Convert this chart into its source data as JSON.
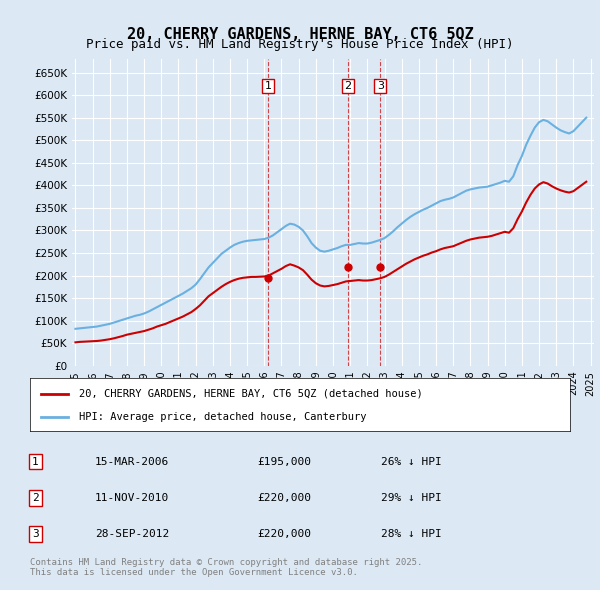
{
  "title": "20, CHERRY GARDENS, HERNE BAY, CT6 5QZ",
  "subtitle": "Price paid vs. HM Land Registry's House Price Index (HPI)",
  "background_color": "#dce9f5",
  "plot_bg_color": "#dce9f5",
  "hpi_color": "#6ab0e0",
  "price_color": "#cc0000",
  "ylim": [
    0,
    680000
  ],
  "yticks": [
    0,
    50000,
    100000,
    150000,
    200000,
    250000,
    300000,
    350000,
    400000,
    450000,
    500000,
    550000,
    600000,
    650000
  ],
  "legend_line1": "20, CHERRY GARDENS, HERNE BAY, CT6 5QZ (detached house)",
  "legend_line2": "HPI: Average price, detached house, Canterbury",
  "sale_dates": [
    "2006-03-15",
    "2010-11-11",
    "2012-09-28"
  ],
  "sale_labels": [
    "1",
    "2",
    "3"
  ],
  "sale_prices": [
    195000,
    220000,
    220000
  ],
  "sale_info": [
    [
      "1",
      "15-MAR-2006",
      "£195,000",
      "26% ↓ HPI"
    ],
    [
      "2",
      "11-NOV-2010",
      "£220,000",
      "29% ↓ HPI"
    ],
    [
      "3",
      "28-SEP-2012",
      "£220,000",
      "28% ↓ HPI"
    ]
  ],
  "footer": "Contains HM Land Registry data © Crown copyright and database right 2025.\nThis data is licensed under the Open Government Licence v3.0.",
  "hpi_data": {
    "dates": [
      1995.0,
      1995.25,
      1995.5,
      1995.75,
      1996.0,
      1996.25,
      1996.5,
      1996.75,
      1997.0,
      1997.25,
      1997.5,
      1997.75,
      1998.0,
      1998.25,
      1998.5,
      1998.75,
      1999.0,
      1999.25,
      1999.5,
      1999.75,
      2000.0,
      2000.25,
      2000.5,
      2000.75,
      2001.0,
      2001.25,
      2001.5,
      2001.75,
      2002.0,
      2002.25,
      2002.5,
      2002.75,
      2003.0,
      2003.25,
      2003.5,
      2003.75,
      2004.0,
      2004.25,
      2004.5,
      2004.75,
      2005.0,
      2005.25,
      2005.5,
      2005.75,
      2006.0,
      2006.25,
      2006.5,
      2006.75,
      2007.0,
      2007.25,
      2007.5,
      2007.75,
      2008.0,
      2008.25,
      2008.5,
      2008.75,
      2009.0,
      2009.25,
      2009.5,
      2009.75,
      2010.0,
      2010.25,
      2010.5,
      2010.75,
      2011.0,
      2011.25,
      2011.5,
      2011.75,
      2012.0,
      2012.25,
      2012.5,
      2012.75,
      2013.0,
      2013.25,
      2013.5,
      2013.75,
      2014.0,
      2014.25,
      2014.5,
      2014.75,
      2015.0,
      2015.25,
      2015.5,
      2015.75,
      2016.0,
      2016.25,
      2016.5,
      2016.75,
      2017.0,
      2017.25,
      2017.5,
      2017.75,
      2018.0,
      2018.25,
      2018.5,
      2018.75,
      2019.0,
      2019.25,
      2019.5,
      2019.75,
      2020.0,
      2020.25,
      2020.5,
      2020.75,
      2021.0,
      2021.25,
      2021.5,
      2021.75,
      2022.0,
      2022.25,
      2022.5,
      2022.75,
      2023.0,
      2023.25,
      2023.5,
      2023.75,
      2024.0,
      2024.25,
      2024.5,
      2024.75
    ],
    "values": [
      82000,
      83000,
      84000,
      85000,
      86000,
      87000,
      89000,
      91000,
      93000,
      96000,
      99000,
      102000,
      105000,
      108000,
      111000,
      113000,
      116000,
      120000,
      125000,
      130000,
      135000,
      140000,
      145000,
      150000,
      155000,
      160000,
      166000,
      172000,
      180000,
      192000,
      205000,
      218000,
      228000,
      238000,
      248000,
      255000,
      262000,
      268000,
      272000,
      275000,
      277000,
      278000,
      279000,
      280000,
      281000,
      284000,
      289000,
      296000,
      303000,
      310000,
      315000,
      313000,
      308000,
      300000,
      287000,
      272000,
      262000,
      255000,
      253000,
      255000,
      258000,
      261000,
      265000,
      268000,
      268000,
      270000,
      272000,
      271000,
      271000,
      273000,
      276000,
      279000,
      283000,
      290000,
      298000,
      307000,
      315000,
      323000,
      330000,
      336000,
      341000,
      346000,
      350000,
      355000,
      360000,
      365000,
      368000,
      370000,
      373000,
      378000,
      383000,
      388000,
      391000,
      393000,
      395000,
      396000,
      397000,
      400000,
      403000,
      406000,
      410000,
      408000,
      420000,
      445000,
      465000,
      490000,
      510000,
      528000,
      540000,
      545000,
      542000,
      535000,
      528000,
      522000,
      518000,
      515000,
      520000,
      530000,
      540000,
      550000
    ]
  },
  "price_data": {
    "dates": [
      1995.0,
      1995.25,
      1995.5,
      1995.75,
      1996.0,
      1996.25,
      1996.5,
      1996.75,
      1997.0,
      1997.25,
      1997.5,
      1997.75,
      1998.0,
      1998.25,
      1998.5,
      1998.75,
      1999.0,
      1999.25,
      1999.5,
      1999.75,
      2000.0,
      2000.25,
      2000.5,
      2000.75,
      2001.0,
      2001.25,
      2001.5,
      2001.75,
      2002.0,
      2002.25,
      2002.5,
      2002.75,
      2003.0,
      2003.25,
      2003.5,
      2003.75,
      2004.0,
      2004.25,
      2004.5,
      2004.75,
      2005.0,
      2005.25,
      2005.5,
      2005.75,
      2006.0,
      2006.25,
      2006.5,
      2006.75,
      2007.0,
      2007.25,
      2007.5,
      2007.75,
      2008.0,
      2008.25,
      2008.5,
      2008.75,
      2009.0,
      2009.25,
      2009.5,
      2009.75,
      2010.0,
      2010.25,
      2010.5,
      2010.75,
      2011.0,
      2011.25,
      2011.5,
      2011.75,
      2012.0,
      2012.25,
      2012.5,
      2012.75,
      2013.0,
      2013.25,
      2013.5,
      2013.75,
      2014.0,
      2014.25,
      2014.5,
      2014.75,
      2015.0,
      2015.25,
      2015.5,
      2015.75,
      2016.0,
      2016.25,
      2016.5,
      2016.75,
      2017.0,
      2017.25,
      2017.5,
      2017.75,
      2018.0,
      2018.25,
      2018.5,
      2018.75,
      2019.0,
      2019.25,
      2019.5,
      2019.75,
      2020.0,
      2020.25,
      2020.5,
      2020.75,
      2021.0,
      2021.25,
      2021.5,
      2021.75,
      2022.0,
      2022.25,
      2022.5,
      2022.75,
      2023.0,
      2023.25,
      2023.5,
      2023.75,
      2024.0,
      2024.25,
      2024.5,
      2024.75
    ],
    "values": [
      52000,
      53000,
      53500,
      54000,
      54500,
      55000,
      56000,
      57500,
      59000,
      61000,
      63500,
      66000,
      69000,
      71000,
      73000,
      75000,
      77000,
      80000,
      83000,
      87000,
      90000,
      93000,
      97000,
      101000,
      105000,
      109000,
      114000,
      119000,
      126000,
      134000,
      144000,
      154000,
      161000,
      168000,
      175000,
      181000,
      186000,
      190000,
      193000,
      195000,
      196000,
      197000,
      197000,
      197500,
      198000,
      200000,
      205000,
      210000,
      215000,
      221000,
      225000,
      222000,
      218000,
      212000,
      202000,
      191000,
      183000,
      178000,
      176000,
      177000,
      179000,
      181000,
      184000,
      187000,
      188000,
      189000,
      190000,
      189000,
      189000,
      190000,
      192000,
      194000,
      197000,
      202000,
      208000,
      214000,
      220000,
      226000,
      231000,
      236000,
      240000,
      244000,
      247000,
      251000,
      254000,
      258000,
      261000,
      263000,
      265000,
      269000,
      273000,
      277000,
      280000,
      282000,
      284000,
      285000,
      286000,
      288000,
      291000,
      294000,
      297000,
      295000,
      305000,
      325000,
      342000,
      362000,
      379000,
      393000,
      402000,
      407000,
      404000,
      398000,
      393000,
      389000,
      386000,
      384000,
      387000,
      394000,
      401000,
      408000
    ]
  }
}
